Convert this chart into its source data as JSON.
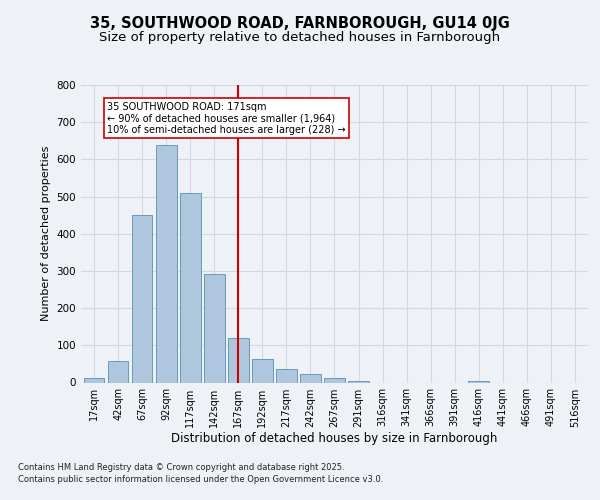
{
  "title": "35, SOUTHWOOD ROAD, FARNBOROUGH, GU14 0JG",
  "subtitle": "Size of property relative to detached houses in Farnborough",
  "xlabel": "Distribution of detached houses by size in Farnborough",
  "ylabel": "Number of detached properties",
  "footnote1": "Contains HM Land Registry data © Crown copyright and database right 2025.",
  "footnote2": "Contains public sector information licensed under the Open Government Licence v3.0.",
  "bar_labels": [
    "17sqm",
    "42sqm",
    "67sqm",
    "92sqm",
    "117sqm",
    "142sqm",
    "167sqm",
    "192sqm",
    "217sqm",
    "242sqm",
    "267sqm",
    "291sqm",
    "316sqm",
    "341sqm",
    "366sqm",
    "391sqm",
    "416sqm",
    "441sqm",
    "466sqm",
    "491sqm",
    "516sqm"
  ],
  "bar_values": [
    12,
    57,
    450,
    640,
    510,
    292,
    120,
    63,
    37,
    22,
    11,
    3,
    0,
    0,
    0,
    0,
    5,
    0,
    0,
    0,
    0
  ],
  "bar_color": "#aec6de",
  "bar_edgecolor": "#6699bb",
  "vline_x": 6,
  "vline_color": "#cc0000",
  "annotation_line1": "35 SOUTHWOOD ROAD: 171sqm",
  "annotation_line2": "← 90% of detached houses are smaller (1,964)",
  "annotation_line3": "10% of semi-detached houses are larger (228) →",
  "annotation_box_edgecolor": "#cc0000",
  "annotation_box_facecolor": "#ffffff",
  "ylim": [
    0,
    800
  ],
  "yticks": [
    0,
    100,
    200,
    300,
    400,
    500,
    600,
    700,
    800
  ],
  "grid_color": "#d0d8e0",
  "background_color": "#eef2f6",
  "axes_background": "#eef2f6",
  "title_fontsize": 10.5,
  "subtitle_fontsize": 9.5,
  "ylabel_fontsize": 8,
  "xlabel_fontsize": 8.5,
  "tick_fontsize": 7,
  "annotation_fontsize": 7,
  "footnote_fontsize": 6
}
